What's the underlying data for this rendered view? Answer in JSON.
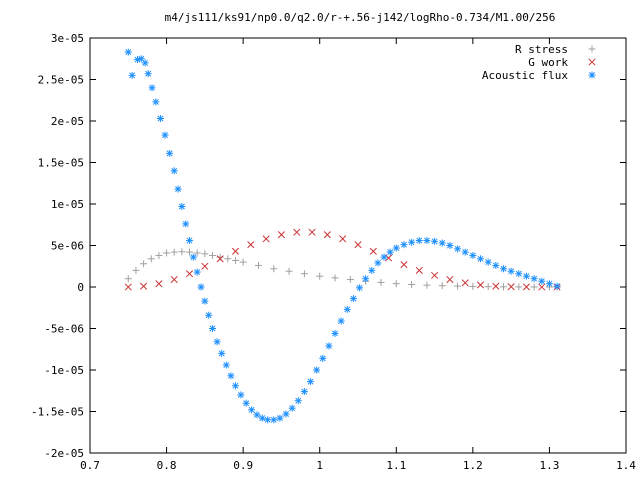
{
  "chart_data": {
    "type": "scatter",
    "title": "m4/js111/ks91/np0.0/q2.0/r-+.56-j142/logRho-0.734/M1.00/256",
    "xlabel": "",
    "ylabel": "",
    "xlim": [
      0.7,
      1.4
    ],
    "ylim": [
      -2e-05,
      3e-05
    ],
    "xticks": [
      0.7,
      0.8,
      0.9,
      1.0,
      1.1,
      1.2,
      1.3,
      1.4
    ],
    "xtick_labels": [
      "0.7",
      "0.8",
      "0.9",
      "1",
      "1.1",
      "1.2",
      "1.3",
      "1.4"
    ],
    "yticks": [
      -2e-05,
      -1.5e-05,
      -1e-05,
      -5e-06,
      0,
      5e-06,
      1e-05,
      1.5e-05,
      2e-05,
      2.5e-05,
      3e-05
    ],
    "ytick_labels": [
      "-2e-05",
      "-1.5e-05",
      "-1e-05",
      "-5e-06",
      "0",
      "5e-06",
      "1e-05",
      "1.5e-05",
      "2e-05",
      "2.5e-05",
      "3e-05"
    ],
    "grid": false,
    "legend_position": "top-right",
    "series": [
      {
        "name": "R stress",
        "marker": "plus",
        "color": "#a0a0a0",
        "x": [
          0.75,
          0.76,
          0.77,
          0.78,
          0.79,
          0.8,
          0.81,
          0.82,
          0.83,
          0.84,
          0.85,
          0.86,
          0.87,
          0.88,
          0.89,
          0.9,
          0.92,
          0.94,
          0.96,
          0.98,
          1.0,
          1.02,
          1.04,
          1.06,
          1.08,
          1.1,
          1.12,
          1.14,
          1.16,
          1.18,
          1.2,
          1.22,
          1.24,
          1.26,
          1.28,
          1.3,
          1.31
        ],
        "y": [
          1e-06,
          2e-06,
          2.8e-06,
          3.4e-06,
          3.8e-06,
          4.1e-06,
          4.2e-06,
          4.25e-06,
          4.2e-06,
          4.1e-06,
          4e-06,
          3.8e-06,
          3.6e-06,
          3.4e-06,
          3.2e-06,
          3e-06,
          2.6e-06,
          2.2e-06,
          1.9e-06,
          1.6e-06,
          1.3e-06,
          1.1e-06,
          9e-07,
          7e-07,
          5.5e-07,
          4e-07,
          3e-07,
          2.2e-07,
          1.6e-07,
          1.1e-07,
          7e-08,
          4e-08,
          2e-08,
          1e-08,
          0,
          0,
          0
        ]
      },
      {
        "name": "G work",
        "marker": "cross",
        "color": "#cc3333",
        "x": [
          0.75,
          0.77,
          0.79,
          0.81,
          0.83,
          0.85,
          0.87,
          0.89,
          0.91,
          0.93,
          0.95,
          0.97,
          0.99,
          1.01,
          1.03,
          1.05,
          1.07,
          1.09,
          1.11,
          1.13,
          1.15,
          1.17,
          1.19,
          1.21,
          1.23,
          1.25,
          1.27,
          1.29,
          1.31
        ],
        "y": [
          0,
          1e-07,
          4e-07,
          9e-07,
          1.6e-06,
          2.5e-06,
          3.4e-06,
          4.3e-06,
          5.1e-06,
          5.8e-06,
          6.3e-06,
          6.6e-06,
          6.6e-06,
          6.3e-06,
          5.8e-06,
          5.1e-06,
          4.3e-06,
          3.5e-06,
          2.7e-06,
          2e-06,
          1.4e-06,
          9e-07,
          5e-07,
          2.5e-07,
          1e-07,
          4e-08,
          1e-08,
          0,
          0
        ]
      },
      {
        "name": "Acoustic flux",
        "marker": "star",
        "color": "#1e90ff",
        "x": [
          0.75,
          0.755,
          0.762,
          0.767,
          0.772,
          0.776,
          0.781,
          0.786,
          0.792,
          0.798,
          0.804,
          0.81,
          0.815,
          0.82,
          0.825,
          0.83,
          0.835,
          0.84,
          0.845,
          0.85,
          0.855,
          0.86,
          0.866,
          0.872,
          0.878,
          0.884,
          0.89,
          0.897,
          0.904,
          0.911,
          0.918,
          0.925,
          0.932,
          0.94,
          0.948,
          0.956,
          0.964,
          0.972,
          0.98,
          0.988,
          0.996,
          1.004,
          1.012,
          1.02,
          1.028,
          1.036,
          1.044,
          1.052,
          1.06,
          1.068,
          1.076,
          1.084,
          1.092,
          1.1,
          1.11,
          1.12,
          1.13,
          1.14,
          1.15,
          1.16,
          1.17,
          1.18,
          1.19,
          1.2,
          1.21,
          1.22,
          1.23,
          1.24,
          1.25,
          1.26,
          1.27,
          1.28,
          1.29,
          1.3,
          1.31
        ],
        "y": [
          2.83e-05,
          2.55e-05,
          2.74e-05,
          2.75e-05,
          2.7e-05,
          2.57e-05,
          2.4e-05,
          2.23e-05,
          2.03e-05,
          1.83e-05,
          1.61e-05,
          1.4e-05,
          1.18e-05,
          9.7e-06,
          7.6e-06,
          5.6e-06,
          3.6e-06,
          1.8e-06,
          0,
          -1.7e-06,
          -3.4e-06,
          -5e-06,
          -6.6e-06,
          -8e-06,
          -9.4e-06,
          -1.07e-05,
          -1.19e-05,
          -1.3e-05,
          -1.4e-05,
          -1.48e-05,
          -1.54e-05,
          -1.58e-05,
          -1.6e-05,
          -1.6e-05,
          -1.58e-05,
          -1.53e-05,
          -1.46e-05,
          -1.37e-05,
          -1.26e-05,
          -1.14e-05,
          -1e-05,
          -8.6e-06,
          -7.1e-06,
          -5.6e-06,
          -4.1e-06,
          -2.7e-06,
          -1.4e-06,
          -1e-07,
          1e-06,
          2e-06,
          2.9e-06,
          3.6e-06,
          4.2e-06,
          4.7e-06,
          5.1e-06,
          5.4e-06,
          5.6e-06,
          5.6e-06,
          5.5e-06,
          5.3e-06,
          5e-06,
          4.6e-06,
          4.2e-06,
          3.8e-06,
          3.4e-06,
          3e-06,
          2.6e-06,
          2.2e-06,
          1.9e-06,
          1.6e-06,
          1.3e-06,
          1e-06,
          7e-07,
          4e-07,
          1e-07
        ]
      }
    ]
  }
}
